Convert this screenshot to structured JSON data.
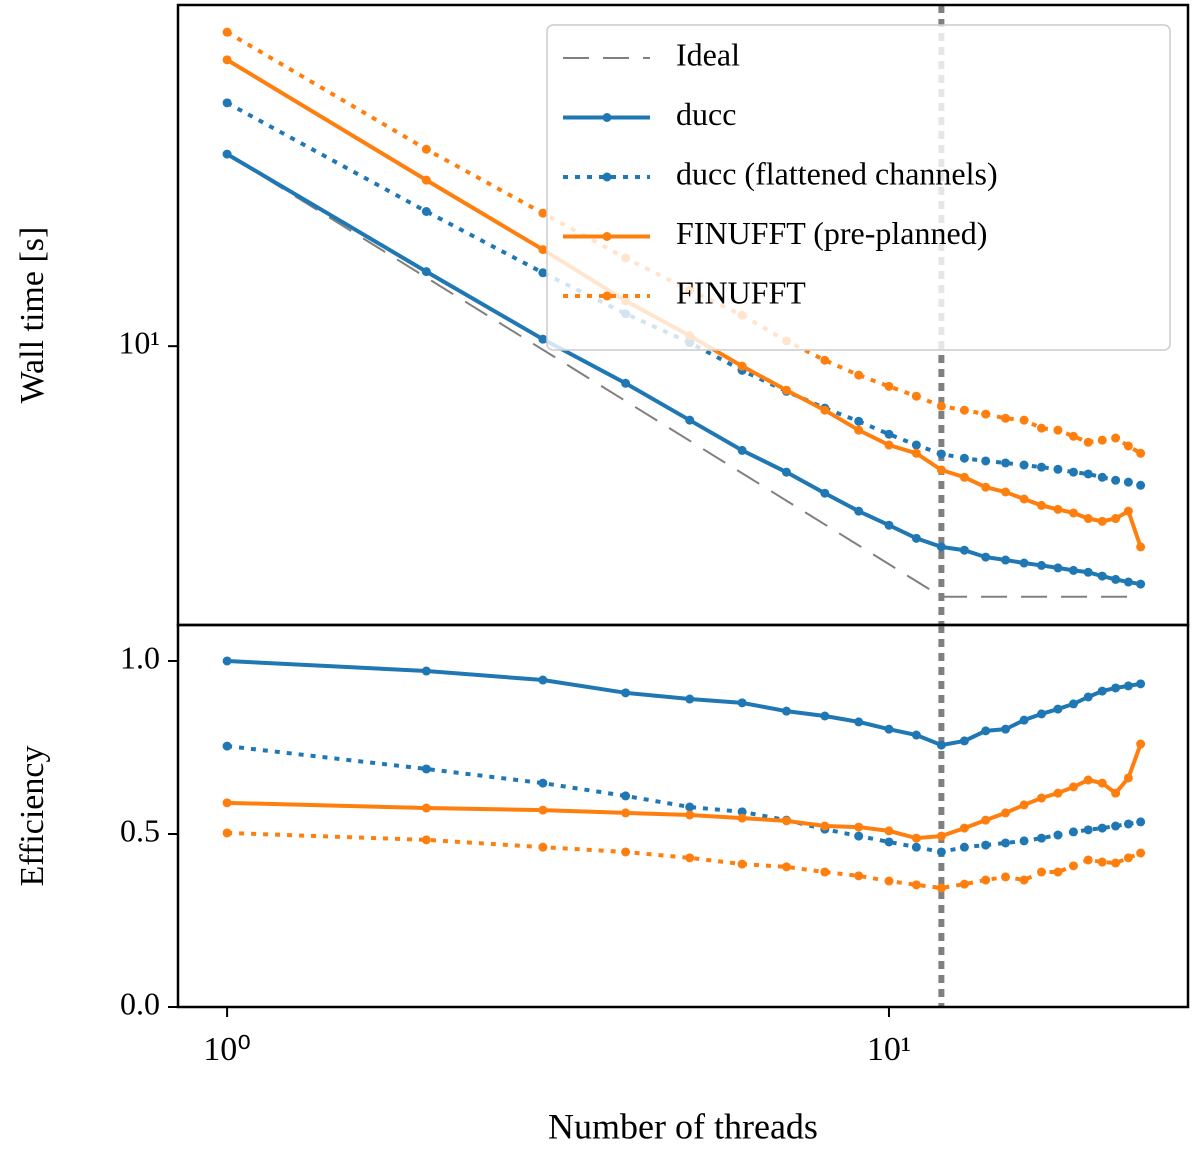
{
  "chart_data": [
    {
      "type": "line",
      "ylabel": "Wall time [s]",
      "xscale": "log",
      "yscale": "log",
      "xlim": [
        0.843,
        28.3
      ],
      "ylim": [
        2.09,
        67.9
      ],
      "yticks": [
        {
          "value": 10,
          "label": "10¹"
        }
      ],
      "vline": 12,
      "legend": "upper right",
      "series": [
        {
          "name": "Ideal",
          "color": "#808080",
          "linestyle": "dashed",
          "marker": false,
          "x": [
            1,
            12,
            24
          ],
          "values": [
            29.4,
            2.45,
            2.45
          ]
        },
        {
          "name": "ducc",
          "color": "#1f77b4",
          "linestyle": "solid",
          "marker": true,
          "x": [
            1,
            2,
            3,
            4,
            5,
            6,
            7,
            8,
            9,
            10,
            11,
            12,
            13,
            14,
            15,
            16,
            17,
            18,
            19,
            20,
            21,
            22,
            23,
            24
          ],
          "values": [
            29.4,
            15.2,
            10.4,
            8.12,
            6.6,
            5.57,
            4.93,
            4.38,
            3.96,
            3.66,
            3.4,
            3.24,
            3.18,
            3.06,
            3.01,
            2.96,
            2.92,
            2.88,
            2.84,
            2.81,
            2.75,
            2.7,
            2.66,
            2.63
          ]
        },
        {
          "name": "ducc (flattened channels)",
          "color": "#1f77b4",
          "linestyle": "dotted",
          "marker": true,
          "x": [
            1,
            2,
            3,
            4,
            5,
            6,
            7,
            8,
            9,
            10,
            11,
            12,
            13,
            14,
            15,
            16,
            17,
            18,
            19,
            20,
            21,
            22,
            23,
            24
          ],
          "values": [
            39.2,
            21.3,
            15.1,
            12.0,
            10.2,
            8.73,
            7.76,
            7.06,
            6.56,
            6.1,
            5.74,
            5.46,
            5.33,
            5.25,
            5.19,
            5.13,
            5.07,
            5.01,
            4.93,
            4.88,
            4.79,
            4.71,
            4.66,
            4.58
          ]
        },
        {
          "name": "FINUFFT (pre-planned)",
          "color": "#ff7f0e",
          "linestyle": "solid",
          "marker": true,
          "x": [
            1,
            2,
            3,
            4,
            5,
            6,
            7,
            8,
            9,
            10,
            11,
            12,
            13,
            14,
            15,
            16,
            17,
            18,
            19,
            20,
            21,
            22,
            23,
            24
          ],
          "values": [
            49.9,
            25.4,
            17.2,
            12.9,
            10.6,
            8.94,
            7.81,
            6.98,
            6.24,
            5.74,
            5.48,
            4.99,
            4.79,
            4.53,
            4.41,
            4.24,
            4.09,
            4.0,
            3.92,
            3.8,
            3.74,
            3.8,
            3.96,
            3.24
          ]
        },
        {
          "name": "FINUFFT",
          "color": "#ff7f0e",
          "linestyle": "dotted",
          "marker": true,
          "x": [
            1,
            2,
            3,
            4,
            5,
            6,
            7,
            8,
            9,
            10,
            11,
            12,
            13,
            14,
            15,
            16,
            17,
            18,
            19,
            20,
            21,
            22,
            23,
            24
          ],
          "values": [
            58.3,
            30.2,
            21.1,
            16.4,
            13.7,
            11.9,
            10.3,
            9.24,
            8.5,
            7.98,
            7.55,
            7.14,
            6.98,
            6.83,
            6.67,
            6.6,
            6.31,
            6.24,
            6.03,
            5.83,
            5.9,
            5.97,
            5.71,
            5.48
          ]
        }
      ]
    },
    {
      "type": "line",
      "ylabel": "Efficiency",
      "xlabel": "Number of threads",
      "xscale": "log",
      "yscale": "linear",
      "xlim": [
        0.843,
        28.3
      ],
      "ylim": [
        0,
        1.104
      ],
      "xticks": [
        {
          "value": 1,
          "label": "10⁰"
        },
        {
          "value": 10,
          "label": "10¹"
        }
      ],
      "yticks": [
        {
          "value": 0,
          "label": "0.0"
        },
        0.5,
        {
          "value": 1,
          "label": "1.0"
        }
      ],
      "vline": 12,
      "series": [
        {
          "color": "#1f77b4",
          "linestyle": "solid",
          "marker": true,
          "x": [
            1,
            2,
            3,
            4,
            5,
            6,
            7,
            8,
            9,
            10,
            11,
            12,
            13,
            14,
            15,
            16,
            17,
            18,
            19,
            20,
            21,
            22,
            23,
            24
          ],
          "values": [
            1.0,
            0.971,
            0.945,
            0.908,
            0.89,
            0.879,
            0.855,
            0.841,
            0.824,
            0.803,
            0.786,
            0.757,
            0.769,
            0.798,
            0.803,
            0.829,
            0.847,
            0.861,
            0.876,
            0.896,
            0.913,
            0.922,
            0.928,
            0.934
          ]
        },
        {
          "color": "#1f77b4",
          "linestyle": "dotted",
          "marker": true,
          "x": [
            1,
            2,
            3,
            4,
            5,
            6,
            7,
            8,
            9,
            10,
            11,
            12,
            13,
            14,
            15,
            16,
            17,
            18,
            19,
            20,
            21,
            22,
            23,
            24
          ],
          "values": [
            0.754,
            0.688,
            0.647,
            0.61,
            0.578,
            0.564,
            0.54,
            0.514,
            0.494,
            0.477,
            0.462,
            0.448,
            0.462,
            0.468,
            0.474,
            0.48,
            0.488,
            0.497,
            0.506,
            0.512,
            0.517,
            0.523,
            0.529,
            0.535
          ]
        },
        {
          "color": "#ff7f0e",
          "linestyle": "solid",
          "marker": true,
          "x": [
            1,
            2,
            3,
            4,
            5,
            6,
            7,
            8,
            9,
            10,
            11,
            12,
            13,
            14,
            15,
            16,
            17,
            18,
            19,
            20,
            21,
            22,
            23,
            24
          ],
          "values": [
            0.59,
            0.575,
            0.569,
            0.561,
            0.555,
            0.546,
            0.538,
            0.523,
            0.52,
            0.509,
            0.488,
            0.494,
            0.517,
            0.54,
            0.561,
            0.584,
            0.604,
            0.618,
            0.636,
            0.656,
            0.647,
            0.618,
            0.662,
            0.76
          ]
        },
        {
          "color": "#ff7f0e",
          "linestyle": "dotted",
          "marker": true,
          "x": [
            1,
            2,
            3,
            4,
            5,
            6,
            7,
            8,
            9,
            10,
            11,
            12,
            13,
            14,
            15,
            16,
            17,
            18,
            19,
            20,
            21,
            22,
            23,
            24
          ],
          "values": [
            0.503,
            0.483,
            0.462,
            0.448,
            0.431,
            0.413,
            0.405,
            0.39,
            0.379,
            0.364,
            0.353,
            0.344,
            0.355,
            0.367,
            0.376,
            0.367,
            0.39,
            0.39,
            0.408,
            0.425,
            0.419,
            0.416,
            0.431,
            0.445
          ]
        }
      ]
    }
  ]
}
